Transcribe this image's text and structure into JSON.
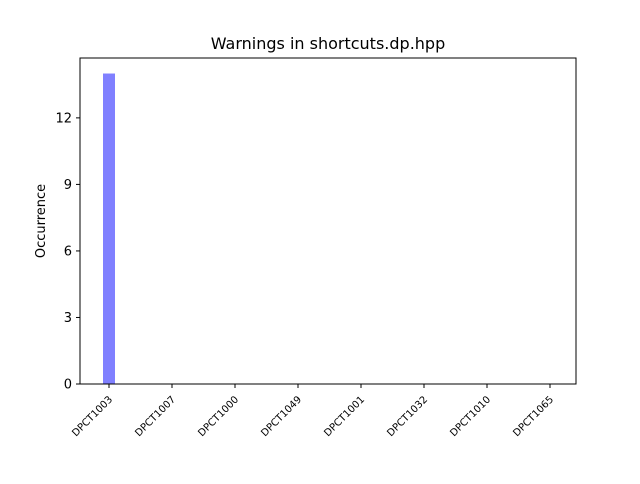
{
  "chart_data": {
    "type": "bar",
    "title": "Warnings in shortcuts.dp.hpp",
    "xlabel": "",
    "ylabel": "Occurrence",
    "categories": [
      "DPCT1003",
      "DPCT1007",
      "DPCT1000",
      "DPCT1049",
      "DPCT1001",
      "DPCT1032",
      "DPCT1010",
      "DPCT1065"
    ],
    "values": [
      14,
      0,
      0,
      0,
      0,
      0,
      0,
      0
    ],
    "yticks": [
      0,
      3,
      6,
      9,
      12
    ],
    "ylim": [
      0,
      14.7
    ],
    "grid": false,
    "bar_color": "#8080ff",
    "xtick_rotation": 45
  }
}
